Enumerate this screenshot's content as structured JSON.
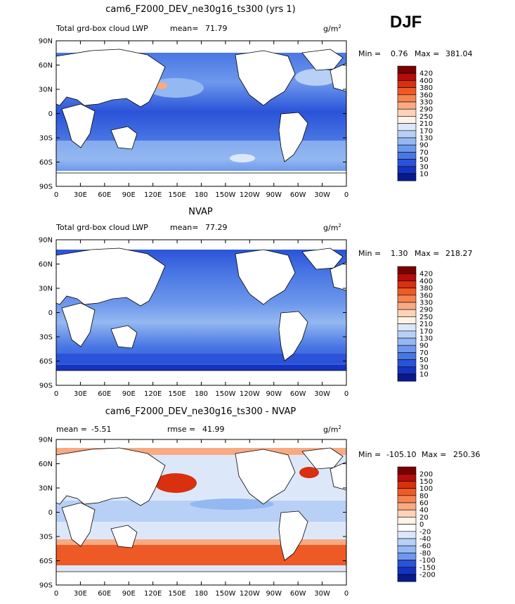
{
  "season": "DJF",
  "panels": [
    {
      "title": "cam6_F2000_DEV_ne30g16_ts300 (yrs 1)",
      "left_label": "Total grd-box cloud LWP",
      "stat_label": "mean=",
      "stat_value": "71.79",
      "rmse_label": "",
      "rmse_value": "",
      "units": "g/m",
      "units_sup": "2",
      "min_label": "Min =",
      "min_value": "0.76",
      "max_label": "Max =",
      "max_value": "381.04"
    },
    {
      "title": "NVAP",
      "left_label": "Total grd-box cloud LWP",
      "stat_label": "mean=",
      "stat_value": "77.29",
      "rmse_label": "",
      "rmse_value": "",
      "units": "g/m",
      "units_sup": "2",
      "min_label": "Min =",
      "min_value": "1.30",
      "max_label": "Max =",
      "max_value": "218.27"
    },
    {
      "title": "cam6_F2000_DEV_ne30g16_ts300 - NVAP",
      "left_label": "",
      "stat_label": "mean =",
      "stat_value": "-5.51",
      "rmse_label": "rmse =",
      "rmse_value": "41.99",
      "units": "g/m",
      "units_sup": "2",
      "min_label": "Min =",
      "min_value": "-105.10",
      "max_label": "Max =",
      "max_value": "250.36"
    }
  ],
  "lon_ticks": [
    "0",
    "30E",
    "60E",
    "90E",
    "120E",
    "150E",
    "180",
    "150W",
    "120W",
    "90W",
    "60W",
    "30W",
    "0"
  ],
  "lat_ticks": [
    "90N",
    "60N",
    "30N",
    "0",
    "30S",
    "60S",
    "90S"
  ],
  "colorbar_lwp": {
    "labels": [
      "420",
      "400",
      "380",
      "360",
      "330",
      "290",
      "250",
      "210",
      "170",
      "130",
      "90",
      "70",
      "50",
      "30",
      "10"
    ],
    "colors": [
      "#7a0000",
      "#b30d0d",
      "#d9300f",
      "#ee5a26",
      "#f58452",
      "#f9aa82",
      "#fcd3b8",
      "#fff2e6",
      "#dce8fa",
      "#b8d0f6",
      "#94b8f1",
      "#6e98ec",
      "#4a77e4",
      "#2a53d8",
      "#1533bf",
      "#081a8c"
    ]
  },
  "colorbar_diff": {
    "labels": [
      "200",
      "150",
      "100",
      "80",
      "60",
      "40",
      "20",
      "0",
      "-20",
      "-40",
      "-60",
      "-80",
      "-100",
      "-150",
      "-200"
    ],
    "colors": [
      "#7a0000",
      "#b30d0d",
      "#d9300f",
      "#ee5a26",
      "#f58452",
      "#f9aa82",
      "#fcd3b8",
      "#fff2e6",
      "#ffffff",
      "#dce8fa",
      "#b8d0f6",
      "#94b8f1",
      "#6e98ec",
      "#2a53d8",
      "#1533bf",
      "#081a8c"
    ]
  },
  "chart_data": [
    {
      "type": "heatmap",
      "title": "cam6_F2000_DEV_ne30g16_ts300 (yrs 1)",
      "variable": "Total grd-box cloud LWP",
      "units": "g/m2",
      "mean": 71.79,
      "min": 0.76,
      "max": 381.04,
      "x_ticks": [
        "0",
        "30E",
        "60E",
        "90E",
        "120E",
        "150E",
        "180",
        "150W",
        "120W",
        "90W",
        "60W",
        "30W",
        "0"
      ],
      "y_ticks": [
        "90N",
        "60N",
        "30N",
        "0",
        "30S",
        "60S",
        "90S"
      ],
      "xlim": [
        0,
        360
      ],
      "ylim": [
        -90,
        90
      ],
      "contour_levels": [
        10,
        30,
        50,
        70,
        90,
        130,
        170,
        210,
        250,
        290,
        330,
        360,
        380,
        400,
        420
      ]
    },
    {
      "type": "heatmap",
      "title": "NVAP",
      "variable": "Total grd-box cloud LWP",
      "units": "g/m2",
      "mean": 77.29,
      "min": 1.3,
      "max": 218.27,
      "x_ticks": [
        "0",
        "30E",
        "60E",
        "90E",
        "120E",
        "150E",
        "180",
        "150W",
        "120W",
        "90W",
        "60W",
        "30W",
        "0"
      ],
      "y_ticks": [
        "90N",
        "60N",
        "30N",
        "0",
        "30S",
        "60S",
        "90S"
      ],
      "xlim": [
        0,
        360
      ],
      "ylim": [
        -90,
        90
      ],
      "contour_levels": [
        10,
        30,
        50,
        70,
        90,
        130,
        170,
        210,
        250,
        290,
        330,
        360,
        380,
        400,
        420
      ]
    },
    {
      "type": "heatmap",
      "title": "cam6_F2000_DEV_ne30g16_ts300 - NVAP",
      "units": "g/m2",
      "mean": -5.51,
      "rmse": 41.99,
      "min": -105.1,
      "max": 250.36,
      "x_ticks": [
        "0",
        "30E",
        "60E",
        "90E",
        "120E",
        "150E",
        "180",
        "150W",
        "120W",
        "90W",
        "60W",
        "30W",
        "0"
      ],
      "y_ticks": [
        "90N",
        "60N",
        "30N",
        "0",
        "30S",
        "60S",
        "90S"
      ],
      "xlim": [
        0,
        360
      ],
      "ylim": [
        -90,
        90
      ],
      "contour_levels": [
        -200,
        -150,
        -100,
        -80,
        -60,
        -40,
        -20,
        0,
        20,
        40,
        60,
        80,
        100,
        150,
        200
      ]
    }
  ]
}
